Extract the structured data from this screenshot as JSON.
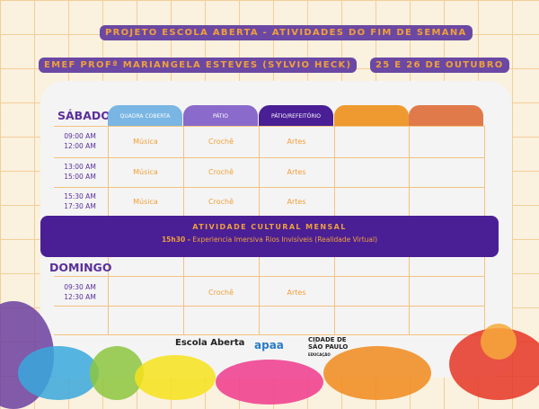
{
  "header": {
    "title": "PROJETO ESCOLA ABERTA - ATIVIDADES DO FIM DE SEMANA",
    "school": "EMEF PROFª MARIANGELA ESTEVES (SYLVIO HECK)",
    "dates": "25 E 26 DE OUTUBRO"
  },
  "columns": [
    {
      "label": "QUADRA COBERTA",
      "color": "#79b6e3"
    },
    {
      "label": "PÁTIO",
      "color": "#8a6acb"
    },
    {
      "label": "PÁTIO/REFEITÓRIO",
      "color": "#4a1f95"
    },
    {
      "label": "",
      "color": "#ee9a30"
    },
    {
      "label": "",
      "color": "#e07a4a"
    }
  ],
  "saturday": {
    "label": "SÁBADO",
    "rows": [
      {
        "start": "09:00 AM",
        "end": "12:00 AM",
        "cells": [
          "Música",
          "Crochê",
          "Artes",
          "",
          ""
        ]
      },
      {
        "start": "13:00 AM",
        "end": "15:00 AM",
        "cells": [
          "Música",
          "Crochê",
          "Artes",
          "",
          ""
        ]
      },
      {
        "start": "15:30 AM",
        "end": "17:30 AM",
        "cells": [
          "Música",
          "Crochê",
          "Artes",
          "",
          ""
        ]
      }
    ]
  },
  "banner": {
    "title": "ATIVIDADE CULTURAL MENSAL",
    "time": "15h30 -",
    "text": "Experiencia Imersiva Rios Invisíveis (Realidade Virtual)"
  },
  "sunday": {
    "label": "DOMINGO",
    "rows": [
      {
        "start": "09:30 AM",
        "end": "12:30 AM",
        "cells": [
          "",
          "Crochê",
          "Artes",
          "",
          ""
        ]
      }
    ]
  },
  "logos": {
    "escola": "Escola Aberta",
    "apaa": "apaa",
    "sp": "CIDADE DE SÃO PAULO",
    "sp_sub": "EDUCAÇÃO"
  }
}
